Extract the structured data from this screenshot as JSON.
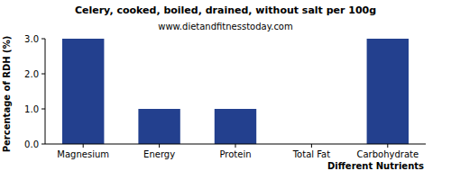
{
  "chart_data": {
    "type": "bar",
    "title": "Celery, cooked, boiled, drained, without salt per 100g",
    "subtitle": "www.dietandfitnesstoday.com",
    "x_label": "Different Nutrients",
    "y_label": "Percentage of RDH (%)",
    "categories": [
      "Magnesium",
      "Energy",
      "Protein",
      "Total Fat",
      "Carbohydrate"
    ],
    "values": [
      3,
      1,
      1,
      0,
      3
    ],
    "color": "#23408e",
    "ylim": [
      0,
      3
    ],
    "yticks": [
      {
        "value": 0,
        "label": "0.0"
      },
      {
        "value": 1,
        "label": "1.0"
      },
      {
        "value": 2,
        "label": "2.0"
      },
      {
        "value": 3,
        "label": "3.0"
      }
    ],
    "grid": false
  }
}
